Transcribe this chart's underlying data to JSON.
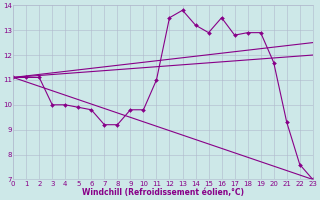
{
  "xlabel": "Windchill (Refroidissement éolien,°C)",
  "xlim": [
    0,
    23
  ],
  "ylim": [
    7,
    14
  ],
  "yticks": [
    7,
    8,
    9,
    10,
    11,
    12,
    13,
    14
  ],
  "xticks": [
    0,
    1,
    2,
    3,
    4,
    5,
    6,
    7,
    8,
    9,
    10,
    11,
    12,
    13,
    14,
    15,
    16,
    17,
    18,
    19,
    20,
    21,
    22,
    23
  ],
  "bg_color": "#cde8e8",
  "line_color": "#880088",
  "grid_color": "#b0b8cc",
  "line_zigzag": {
    "x": [
      0,
      1,
      2,
      3,
      4,
      5,
      6,
      7,
      8,
      9,
      10,
      11,
      12,
      13,
      14,
      15,
      16,
      17,
      18,
      19,
      20,
      21,
      22,
      23
    ],
    "y": [
      11.1,
      11.1,
      11.1,
      10.0,
      10.0,
      9.9,
      9.8,
      9.2,
      9.2,
      9.8,
      9.8,
      11.0,
      13.5,
      13.8,
      13.2,
      12.9,
      13.5,
      12.8,
      12.9,
      12.9,
      11.7,
      9.3,
      7.6,
      7.0
    ]
  },
  "line_upper1": {
    "x": [
      0,
      23
    ],
    "y": [
      11.1,
      12.5
    ]
  },
  "line_upper2": {
    "x": [
      0,
      23
    ],
    "y": [
      11.1,
      12.0
    ]
  },
  "line_lower": {
    "x": [
      0,
      23
    ],
    "y": [
      11.1,
      7.0
    ]
  },
  "tick_fontsize": 5,
  "xlabel_fontsize": 5.5
}
